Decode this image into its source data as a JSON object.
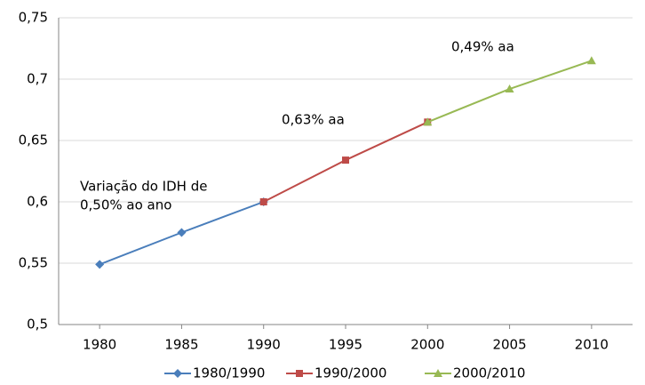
{
  "chart_data": {
    "type": "line",
    "x": [
      1980,
      1985,
      1990,
      1995,
      2000,
      2005,
      2010
    ],
    "xlim": [
      1977.5,
      2012.5
    ],
    "xticks": [
      1980,
      1985,
      1990,
      1995,
      2000,
      2005,
      2010
    ],
    "ylim": [
      0.5,
      0.75
    ],
    "yticks": [
      {
        "value": 0.5,
        "label": "0,5"
      },
      {
        "value": 0.55,
        "label": "0,55"
      },
      {
        "value": 0.6,
        "label": "0,6"
      },
      {
        "value": 0.65,
        "label": "0,65"
      },
      {
        "value": 0.7,
        "label": "0,7"
      },
      {
        "value": 0.75,
        "label": "0,75"
      }
    ],
    "grid": true,
    "legend": "bottom",
    "series": [
      {
        "name": "1980/1990",
        "color": "#4a7ebb",
        "marker": "diamond",
        "values": [
          0.549,
          0.575,
          0.6,
          null,
          null,
          null,
          null
        ]
      },
      {
        "name": "1990/2000",
        "color": "#be4b48",
        "marker": "square",
        "values": [
          null,
          null,
          0.6,
          0.634,
          0.665,
          null,
          null
        ]
      },
      {
        "name": "2000/2010",
        "color": "#98b954",
        "marker": "triangle",
        "values": [
          null,
          null,
          null,
          null,
          0.665,
          0.692,
          0.715
        ]
      }
    ],
    "annotations": [
      [
        "Variação do IDH de",
        "0,50% ao ano"
      ],
      [
        "0,63% aa"
      ],
      [
        "0,49% aa"
      ]
    ]
  }
}
